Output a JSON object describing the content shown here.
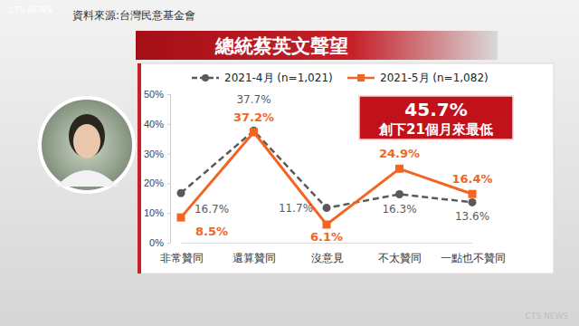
{
  "source": "資料來源:台灣民意基金會",
  "watermarks": [
    "CTS NEWS",
    "CTS NEWS"
  ],
  "chart_data": {
    "type": "line",
    "title": "總統蔡英文聲望",
    "categories": [
      "非常贊同",
      "還算贊同",
      "沒意見",
      "不太贊同",
      "一點也不贊同"
    ],
    "series": [
      {
        "name": "2021-4月 (n=1,021)",
        "color": "#5a5a5a",
        "line_style": "dashed",
        "marker": "circle",
        "values": [
          16.7,
          37.7,
          11.7,
          16.3,
          13.6
        ],
        "value_labels": [
          "16.7%",
          "37.7%",
          "11.7%",
          "16.3%",
          "13.6%"
        ]
      },
      {
        "name": "2021-5月 (n=1,082)",
        "color": "#f26522",
        "line_style": "solid",
        "marker": "square",
        "values": [
          8.5,
          37.2,
          6.1,
          24.9,
          16.4
        ],
        "value_labels": [
          "8.5%",
          "37.2%",
          "6.1%",
          "24.9%",
          "16.4%"
        ]
      }
    ],
    "ylim": [
      0,
      50
    ],
    "yticks": [
      {
        "value": 0,
        "label": "0%"
      },
      {
        "value": 10,
        "label": "10%"
      },
      {
        "value": 20,
        "label": "20%"
      },
      {
        "value": 30,
        "label": "30%"
      },
      {
        "value": 40,
        "label": "40%"
      },
      {
        "value": 50,
        "label": "50%"
      }
    ],
    "grid": false,
    "legend": "top",
    "data_labels": true,
    "annotations": [
      "45.7%",
      "創下21個月來最低"
    ]
  }
}
